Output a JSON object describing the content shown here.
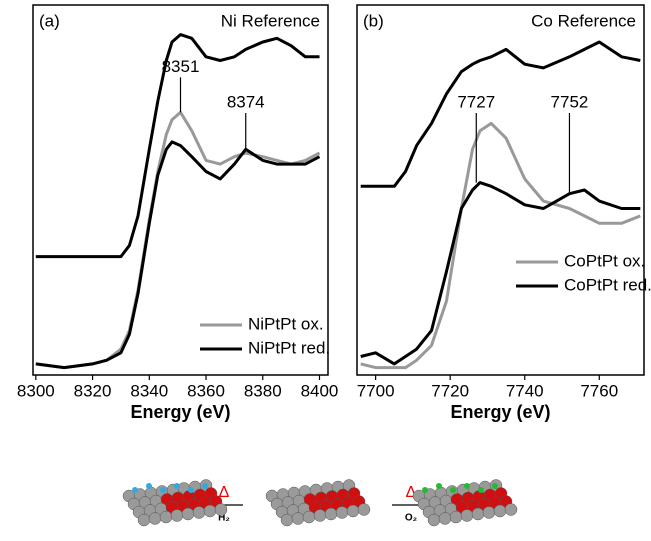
{
  "chart_data": [
    {
      "type": "line",
      "panel_label": "(a)",
      "xlabel": "Energy (eV)",
      "x": [
        8300,
        8310,
        8320,
        8325,
        8330,
        8333,
        8336,
        8340,
        8343,
        8346,
        8348,
        8351,
        8355,
        8360,
        8365,
        8370,
        8374,
        8380,
        8385,
        8390,
        8395,
        8400
      ],
      "series": [
        {
          "name": "Ni Reference",
          "color": "#000000",
          "in_legend": false,
          "values": [
            0.32,
            0.32,
            0.32,
            0.32,
            0.32,
            0.35,
            0.43,
            0.61,
            0.74,
            0.85,
            0.9,
            0.92,
            0.91,
            0.86,
            0.85,
            0.86,
            0.88,
            0.9,
            0.91,
            0.89,
            0.86,
            0.86
          ]
        },
        {
          "name": "NiPtPt ox.",
          "color": "#999999",
          "in_legend": true,
          "values": [
            0.03,
            0.02,
            0.03,
            0.04,
            0.07,
            0.12,
            0.23,
            0.42,
            0.55,
            0.65,
            0.69,
            0.71,
            0.66,
            0.58,
            0.57,
            0.59,
            0.6,
            0.59,
            0.58,
            0.57,
            0.58,
            0.6
          ]
        },
        {
          "name": "NiPtPt red.",
          "color": "#000000",
          "in_legend": true,
          "values": [
            0.03,
            0.02,
            0.03,
            0.04,
            0.06,
            0.11,
            0.22,
            0.41,
            0.54,
            0.61,
            0.63,
            0.62,
            0.59,
            0.55,
            0.53,
            0.57,
            0.61,
            0.58,
            0.57,
            0.57,
            0.57,
            0.59
          ]
        }
      ],
      "annotations": [
        {
          "x": 8351,
          "y": 0.71
        },
        {
          "x": 8374,
          "y": 0.61
        }
      ],
      "xlim": [
        8299,
        8403
      ],
      "ylim": [
        0,
        1
      ],
      "xticks": [
        8300,
        8320,
        8340,
        8360,
        8380,
        8400
      ],
      "legend": "lower right"
    },
    {
      "type": "line",
      "panel_label": "(b)",
      "xlabel": "Energy (eV)",
      "x": [
        7696,
        7700,
        7705,
        7708,
        7711,
        7715,
        7719,
        7723,
        7726,
        7728,
        7731,
        7735,
        7740,
        7745,
        7752,
        7756,
        7760,
        7766,
        7771
      ],
      "series": [
        {
          "name": "Co Reference",
          "color": "#000000",
          "in_legend": false,
          "values": [
            0.51,
            0.51,
            0.51,
            0.55,
            0.62,
            0.68,
            0.76,
            0.82,
            0.84,
            0.85,
            0.86,
            0.88,
            0.84,
            0.83,
            0.86,
            0.88,
            0.9,
            0.86,
            0.85
          ]
        },
        {
          "name": "CoPtPt ox.",
          "color": "#999999",
          "in_legend": true,
          "values": [
            0.03,
            0.02,
            0.02,
            0.02,
            0.04,
            0.08,
            0.2,
            0.45,
            0.61,
            0.66,
            0.68,
            0.64,
            0.53,
            0.47,
            0.45,
            0.43,
            0.41,
            0.41,
            0.43
          ]
        },
        {
          "name": "CoPtPt red.",
          "color": "#000000",
          "in_legend": true,
          "values": [
            0.05,
            0.06,
            0.03,
            0.05,
            0.07,
            0.12,
            0.28,
            0.45,
            0.5,
            0.52,
            0.51,
            0.49,
            0.46,
            0.45,
            0.49,
            0.5,
            0.47,
            0.45,
            0.45
          ]
        }
      ],
      "annotations": [
        {
          "x": 7727,
          "y": 0.52
        },
        {
          "x": 7752,
          "y": 0.49
        }
      ],
      "xlim": [
        7695,
        7772
      ],
      "ylim": [
        0,
        1
      ],
      "xticks": [
        7700,
        7720,
        7740,
        7760
      ],
      "legend": "center right"
    }
  ],
  "scheme": {
    "labels": [
      "Δ",
      "H₂",
      "Δ",
      "O₂"
    ]
  }
}
